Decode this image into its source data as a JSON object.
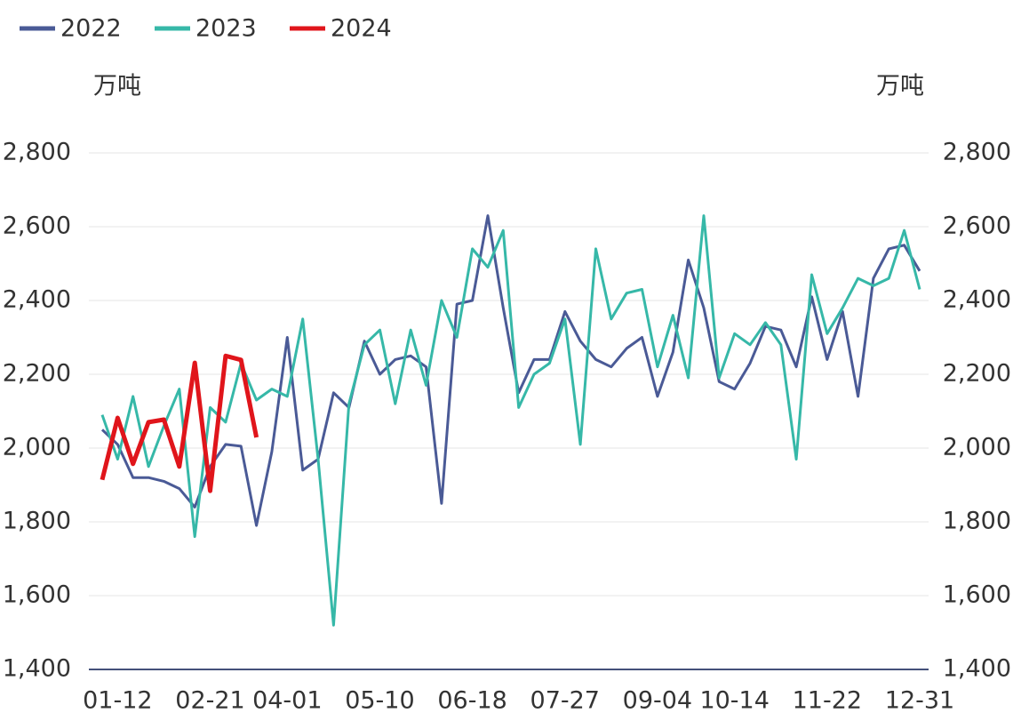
{
  "chart_data": {
    "type": "line",
    "y_label": "万吨",
    "y2_label": "万吨",
    "categories": [
      null,
      "01-12",
      null,
      null,
      null,
      null,
      null,
      "02-21",
      null,
      null,
      null,
      null,
      "04-01",
      null,
      null,
      null,
      null,
      null,
      "05-10",
      null,
      null,
      null,
      null,
      null,
      "06-18",
      null,
      null,
      null,
      null,
      null,
      "07-27",
      null,
      null,
      null,
      null,
      null,
      "09-04",
      null,
      null,
      null,
      null,
      "10-14",
      null,
      null,
      null,
      null,
      null,
      "11-22",
      null,
      null,
      null,
      null,
      null,
      "12-31"
    ],
    "series": [
      {
        "name": "2022",
        "color": "#4a5a96",
        "values": [
          2050,
          2010,
          1920,
          1920,
          1910,
          1890,
          1840,
          1950,
          2010,
          2005,
          1790,
          1990,
          2300,
          1940,
          1970,
          2150,
          2110,
          2290,
          2200,
          2240,
          2250,
          2220,
          1850,
          2390,
          2400,
          2630,
          2380,
          2150,
          2240,
          2240,
          2370,
          2290,
          2240,
          2220,
          2270,
          2300,
          2140,
          2260,
          2510,
          2380,
          2180,
          2160,
          2230,
          2330,
          2320,
          2220,
          2410,
          2240,
          2370,
          2140,
          2460,
          2540,
          2550,
          2480
        ]
      },
      {
        "name": "2023",
        "color": "#36b8a8",
        "values": [
          2090,
          1970,
          2140,
          1950,
          2060,
          2160,
          1760,
          2110,
          2070,
          2230,
          2130,
          2160,
          2140,
          2350,
          1970,
          1520,
          2120,
          2280,
          2320,
          2120,
          2320,
          2170,
          2400,
          2300,
          2540,
          2490,
          2590,
          2110,
          2200,
          2230,
          2350,
          2010,
          2540,
          2350,
          2420,
          2430,
          2220,
          2360,
          2190,
          2630,
          2190,
          2310,
          2280,
          2340,
          2280,
          1970,
          2470,
          2310,
          2380,
          2460,
          2440,
          2460,
          2590,
          2430
        ]
      },
      {
        "name": "2024",
        "color": "#e0151b",
        "values": [
          1914,
          2082,
          1957,
          2070,
          2077,
          1950,
          2231,
          1884,
          2250,
          2239,
          2029,
          null,
          null,
          null,
          null,
          null,
          null,
          null,
          null,
          null,
          null,
          null,
          null,
          null,
          null,
          null,
          null,
          null,
          null,
          null,
          null,
          null,
          null,
          null,
          null,
          null,
          null,
          null,
          null,
          null,
          null,
          null,
          null,
          null,
          null,
          null,
          null,
          null,
          null,
          null,
          null,
          null,
          null,
          null
        ]
      }
    ],
    "ylim": [
      1400,
      2800
    ],
    "yticks": [
      {
        "value": 1400,
        "label": "1,400"
      },
      {
        "value": 1600,
        "label": "1,600"
      },
      {
        "value": 1800,
        "label": "1,800"
      },
      {
        "value": 2000,
        "label": "2,000"
      },
      {
        "value": 2200,
        "label": "2,200"
      },
      {
        "value": 2400,
        "label": "2,400"
      },
      {
        "value": 2600,
        "label": "2,600"
      },
      {
        "value": 2800,
        "label": "2,800"
      }
    ],
    "y2lim": [
      1400,
      2800
    ],
    "y2ticks": [
      {
        "value": 1400,
        "label": "1,400"
      },
      {
        "value": 1600,
        "label": "1,600"
      },
      {
        "value": 1800,
        "label": "1,800"
      },
      {
        "value": 2000,
        "label": "2,000"
      },
      {
        "value": 2200,
        "label": "2,200"
      },
      {
        "value": 2400,
        "label": "2,400"
      },
      {
        "value": 2600,
        "label": "2,600"
      },
      {
        "value": 2800,
        "label": "2,800"
      }
    ],
    "grid": true,
    "legend": "top-left"
  }
}
